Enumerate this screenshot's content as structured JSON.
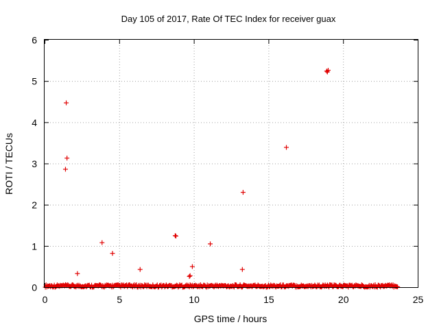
{
  "chart_data": {
    "type": "scatter",
    "title": "Day 105 of 2017, Rate Of TEC Index for receiver guax",
    "xlabel": "GPS time / hours",
    "ylabel": "ROTI / TECUs",
    "xlim": [
      0,
      25
    ],
    "ylim": [
      0,
      6
    ],
    "xticks": [
      "0",
      "5",
      "10",
      "15",
      "20",
      "25"
    ],
    "yticks": [
      "0",
      "1",
      "2",
      "3",
      "4",
      "5",
      "6"
    ],
    "grid": true,
    "marker": "+",
    "color": "#e00000",
    "series": [
      {
        "name": "ROTI",
        "points": [
          [
            1.45,
            4.47
          ],
          [
            1.5,
            3.13
          ],
          [
            1.4,
            2.86
          ],
          [
            2.2,
            0.33
          ],
          [
            3.85,
            1.08
          ],
          [
            4.55,
            0.82
          ],
          [
            6.4,
            0.43
          ],
          [
            8.75,
            1.25
          ],
          [
            8.8,
            1.24
          ],
          [
            9.7,
            0.26
          ],
          [
            9.75,
            0.28
          ],
          [
            9.9,
            0.5
          ],
          [
            11.1,
            1.05
          ],
          [
            13.25,
            0.43
          ],
          [
            13.3,
            2.3
          ],
          [
            16.2,
            3.39
          ],
          [
            18.9,
            5.24
          ],
          [
            18.95,
            5.22
          ],
          [
            19.0,
            5.26
          ]
        ],
        "baseline": {
          "x_start": 0.05,
          "x_end": 23.7,
          "y_min": 0.0,
          "y_max": 0.06,
          "step": 0.05
        }
      }
    ]
  }
}
